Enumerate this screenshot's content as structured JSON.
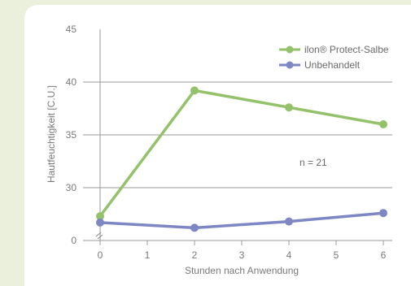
{
  "chart_data": {
    "type": "line",
    "x": [
      0,
      2,
      4,
      6
    ],
    "x_ticks": [
      0,
      1,
      2,
      3,
      4,
      5,
      6
    ],
    "y_ticks": [
      0,
      30,
      35,
      40,
      45
    ],
    "xlabel": "Stunden nach Anwendung",
    "ylabel": "Hautfeuchtigkeit [C.U.]",
    "annotation": "n = 21",
    "axis_break": true,
    "legend_position": "top-right",
    "series": [
      {
        "name": "ilon® Protect-Salbe",
        "color": "#94c26a",
        "values": [
          27.3,
          39.2,
          37.6,
          36.0
        ]
      },
      {
        "name": "Unbehandelt",
        "color": "#7e86c4",
        "values": [
          26.7,
          26.2,
          26.8,
          27.6
        ]
      }
    ]
  }
}
